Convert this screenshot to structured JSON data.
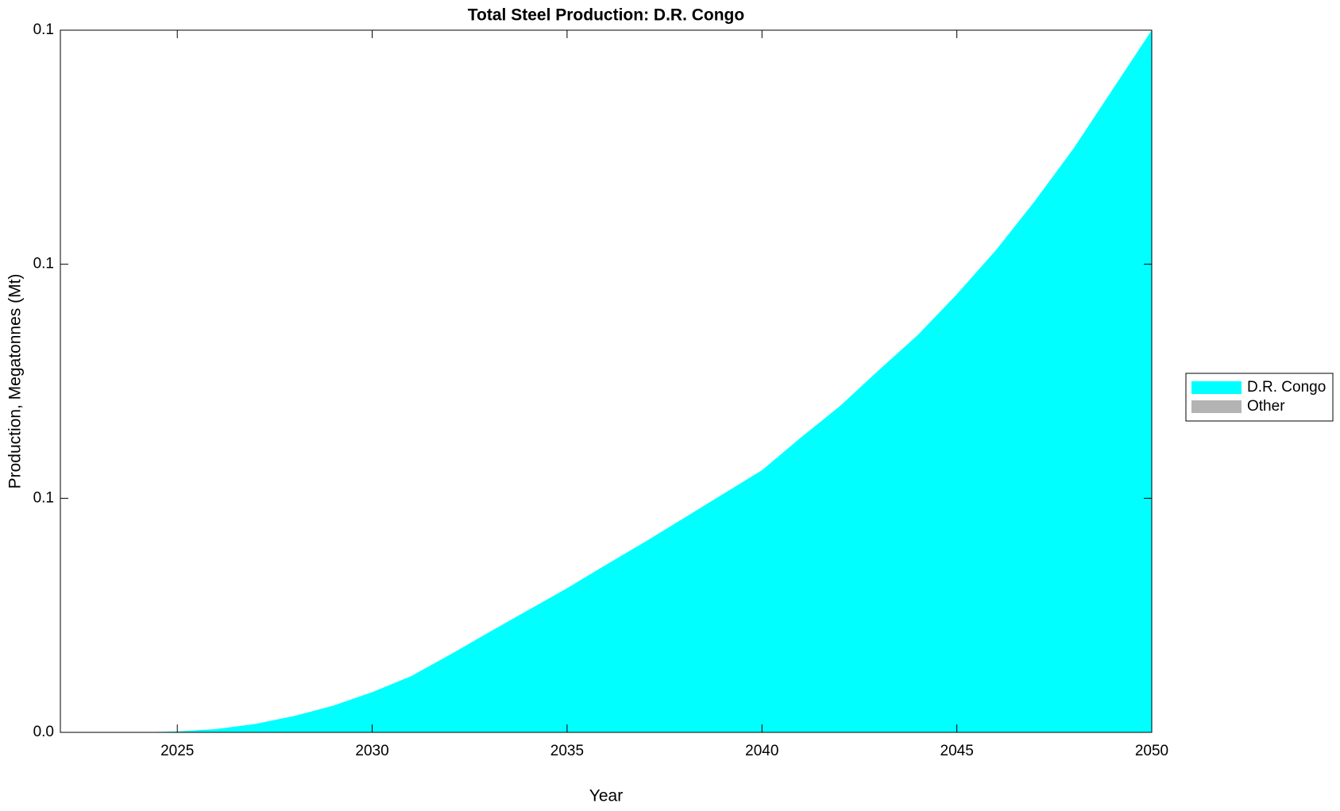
{
  "chart_data": {
    "type": "stacked_area",
    "title": "Total Steel Production: D.R. Congo",
    "xlabel": "Year",
    "ylabel": "Production, Megatonnes (Mt)",
    "x": [
      2022,
      2023,
      2024,
      2025,
      2026,
      2027,
      2028,
      2029,
      2030,
      2031,
      2032,
      2033,
      2034,
      2035,
      2036,
      2037,
      2038,
      2039,
      2040,
      2041,
      2042,
      2043,
      2044,
      2045,
      2046,
      2047,
      2048,
      2049,
      2050
    ],
    "series": [
      {
        "name": "D.R. Congo",
        "color": "#00ffff",
        "values": [
          0,
          0,
          0,
          0.0002,
          0.0007,
          0.0018,
          0.0035,
          0.0057,
          0.0086,
          0.012,
          0.0166,
          0.0214,
          0.0261,
          0.0308,
          0.0358,
          0.0407,
          0.0458,
          0.0509,
          0.056,
          0.063,
          0.0697,
          0.0774,
          0.0849,
          0.0936,
          0.103,
          0.1135,
          0.1248,
          0.1374,
          0.15
        ]
      },
      {
        "name": "Other",
        "color": "#b3b3b3",
        "values": [
          0,
          0,
          0,
          0,
          0,
          0,
          0,
          0,
          0,
          0,
          0,
          0,
          0,
          0,
          0,
          0,
          0,
          0,
          0,
          0,
          0,
          0,
          0,
          0,
          0,
          0,
          0,
          0,
          0
        ]
      }
    ],
    "xlim": [
      2022,
      2050
    ],
    "xticks": [
      2025,
      2030,
      2035,
      2040,
      2045,
      2050
    ],
    "ylim": [
      0,
      0.15
    ],
    "yticks": [
      {
        "value": 0,
        "label": "0.0"
      },
      {
        "value": 0.05,
        "label": "0.1"
      },
      {
        "value": 0.1,
        "label": "0.1"
      },
      {
        "value": 0.15,
        "label": "0.1"
      }
    ],
    "legend": "right"
  }
}
